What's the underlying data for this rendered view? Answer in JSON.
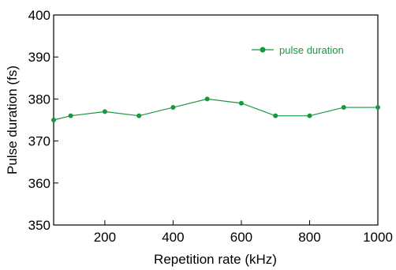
{
  "chart_data": {
    "type": "line",
    "title": "",
    "xlabel": "Repetition rate (kHz)",
    "ylabel": "Pulse duration (fs)",
    "xlim": [
      50,
      1000
    ],
    "ylim": [
      350,
      400
    ],
    "xticks": [
      200,
      400,
      600,
      800,
      1000
    ],
    "yticks": [
      350,
      360,
      370,
      380,
      390,
      400
    ],
    "grid": false,
    "legend": "top-right",
    "series": [
      {
        "name": "pulse duration",
        "color": "#1a9641",
        "marker": "circle",
        "x": [
          50,
          100,
          200,
          300,
          400,
          500,
          600,
          700,
          800,
          900,
          1000
        ],
        "y": [
          375,
          376,
          377,
          376,
          378,
          380,
          379,
          376,
          376,
          378,
          378
        ]
      }
    ]
  }
}
